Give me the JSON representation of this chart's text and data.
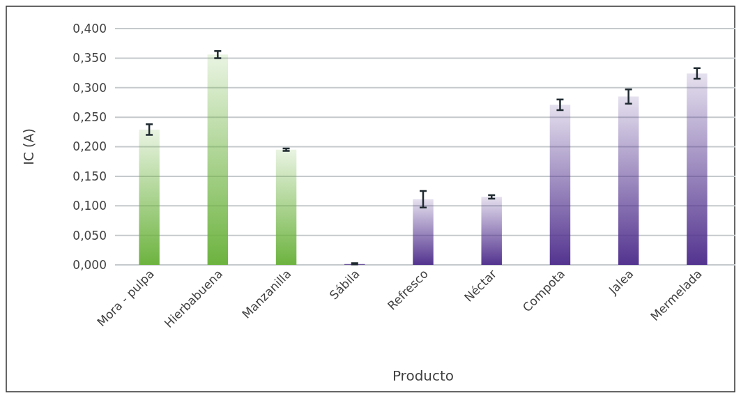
{
  "chart_data": {
    "type": "bar",
    "xlabel": "Producto",
    "ylabel": "IC (A)",
    "categories": [
      "Mora - pulpa",
      "Hierbabuena",
      "Manzanilla",
      "Sábila",
      "Refresco",
      "Néctar",
      "Compota",
      "Jalea",
      "Mermelada"
    ],
    "values": [
      0.229,
      0.356,
      0.195,
      0.002,
      0.111,
      0.115,
      0.271,
      0.285,
      0.324
    ],
    "errors": [
      0.009,
      0.006,
      0.002,
      0.001,
      0.014,
      0.003,
      0.009,
      0.012,
      0.009
    ],
    "colors": [
      "#6db33f",
      "#6db33f",
      "#6db33f",
      "#53338f",
      "#53338f",
      "#53338f",
      "#53338f",
      "#53338f",
      "#53338f"
    ],
    "ylim": [
      0,
      0.4
    ],
    "yticks": [
      {
        "value": 0,
        "label": "0,000"
      },
      {
        "value": 0.05,
        "label": "0,050"
      },
      {
        "value": 0.1,
        "label": "0,100"
      },
      {
        "value": 0.15,
        "label": "0,150"
      },
      {
        "value": 0.2,
        "label": "0,200"
      },
      {
        "value": 0.25,
        "label": "0,250"
      },
      {
        "value": 0.3,
        "label": "0,300"
      },
      {
        "value": 0.35,
        "label": "0,350"
      },
      {
        "value": 0.4,
        "label": "0,400"
      }
    ],
    "grid": "y"
  }
}
